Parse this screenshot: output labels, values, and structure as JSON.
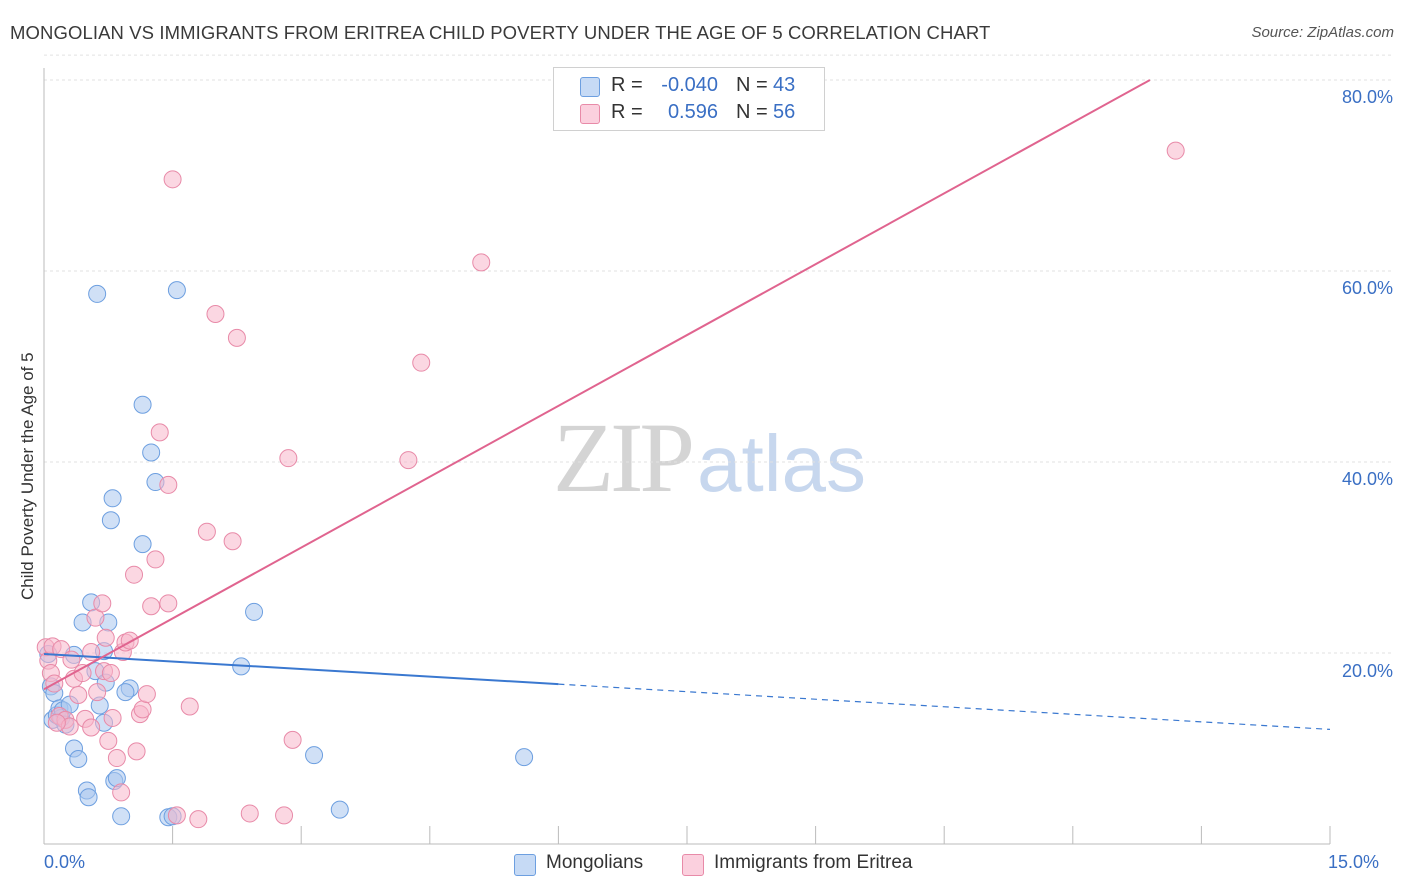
{
  "title": "MONGOLIAN VS IMMIGRANTS FROM ERITREA CHILD POVERTY UNDER THE AGE OF 5 CORRELATION CHART",
  "source": "Source: ZipAtlas.com",
  "watermark": {
    "zip": "ZIP",
    "atlas": "atlas"
  },
  "legend": {
    "rows": [
      {
        "r_label": "R =",
        "r_value": "-0.040",
        "n_label": "N =",
        "n_value": "43",
        "color": "#a9c6ef"
      },
      {
        "r_label": "R =",
        "r_value": "0.596",
        "n_label": "N =",
        "n_value": "56",
        "color": "#f7b6cb"
      }
    ]
  },
  "bottom_legend": [
    {
      "label": "Mongolians",
      "color": "#a9c6ef"
    },
    {
      "label": "Immigrants from Eritrea",
      "color": "#f7b6cb"
    }
  ],
  "chart_data": {
    "type": "scatter",
    "title": "MONGOLIAN VS IMMIGRANTS FROM ERITREA CHILD POVERTY UNDER THE AGE OF 5 CORRELATION CHART",
    "xlabel": "",
    "ylabel": "Child Poverty Under the Age of 5",
    "xlim": [
      0,
      15
    ],
    "ylim": [
      0,
      80
    ],
    "x_tick_labels": {
      "min": "0.0%",
      "max": "15.0%"
    },
    "y_ticks": [
      20,
      40,
      60,
      80
    ],
    "y_tick_labels": [
      "20.0%",
      "40.0%",
      "60.0%",
      "80.0%"
    ],
    "grid": true,
    "series": [
      {
        "name": "Mongolians",
        "color": "#6d9fe0",
        "fill": "#a9c6ef",
        "points": [
          [
            0.05,
            19.9
          ],
          [
            0.08,
            16.5
          ],
          [
            0.1,
            13.0
          ],
          [
            0.12,
            15.8
          ],
          [
            0.15,
            13.5
          ],
          [
            0.18,
            14.2
          ],
          [
            0.2,
            13.2
          ],
          [
            0.22,
            14.0
          ],
          [
            0.25,
            12.5
          ],
          [
            0.3,
            14.6
          ],
          [
            0.35,
            19.8
          ],
          [
            0.35,
            10.0
          ],
          [
            0.4,
            8.9
          ],
          [
            0.45,
            23.2
          ],
          [
            0.5,
            5.6
          ],
          [
            0.52,
            4.9
          ],
          [
            0.55,
            25.3
          ],
          [
            0.6,
            18.1
          ],
          [
            0.62,
            57.6
          ],
          [
            0.65,
            14.5
          ],
          [
            0.7,
            12.7
          ],
          [
            0.7,
            20.2
          ],
          [
            0.72,
            16.9
          ],
          [
            0.75,
            23.2
          ],
          [
            0.78,
            33.9
          ],
          [
            0.8,
            36.2
          ],
          [
            0.82,
            6.6
          ],
          [
            0.85,
            6.9
          ],
          [
            0.9,
            2.9
          ],
          [
            1.0,
            16.3
          ],
          [
            1.15,
            31.4
          ],
          [
            1.15,
            46.0
          ],
          [
            1.25,
            41.0
          ],
          [
            1.3,
            37.9
          ],
          [
            1.45,
            2.8
          ],
          [
            1.55,
            58.0
          ],
          [
            1.5,
            2.9
          ],
          [
            2.3,
            18.6
          ],
          [
            2.45,
            24.3
          ],
          [
            3.15,
            9.3
          ],
          [
            3.45,
            3.6
          ],
          [
            5.6,
            9.1
          ],
          [
            0.95,
            15.9
          ]
        ],
        "trend": {
          "x0": 0,
          "y0": 19.9,
          "x_solid_end": 6.0,
          "x1": 15.0,
          "y1": 12.0
        }
      },
      {
        "name": "Immigrants from Eritrea",
        "color": "#e88aa8",
        "fill": "#f7b6cb",
        "points": [
          [
            0.02,
            20.6
          ],
          [
            0.05,
            19.2
          ],
          [
            0.08,
            17.9
          ],
          [
            0.1,
            20.7
          ],
          [
            0.12,
            16.8
          ],
          [
            0.18,
            13.4
          ],
          [
            0.2,
            20.4
          ],
          [
            0.25,
            13.0
          ],
          [
            0.3,
            12.3
          ],
          [
            0.35,
            17.3
          ],
          [
            0.4,
            15.6
          ],
          [
            0.45,
            17.9
          ],
          [
            0.48,
            13.1
          ],
          [
            0.55,
            20.1
          ],
          [
            0.6,
            23.7
          ],
          [
            0.62,
            15.9
          ],
          [
            0.68,
            25.2
          ],
          [
            0.7,
            18.1
          ],
          [
            0.75,
            10.8
          ],
          [
            0.78,
            17.9
          ],
          [
            0.8,
            13.2
          ],
          [
            0.85,
            9.0
          ],
          [
            0.9,
            5.4
          ],
          [
            0.92,
            20.1
          ],
          [
            0.95,
            21.1
          ],
          [
            1.0,
            21.3
          ],
          [
            1.05,
            28.2
          ],
          [
            1.08,
            9.7
          ],
          [
            1.12,
            13.6
          ],
          [
            1.15,
            14.1
          ],
          [
            1.2,
            15.7
          ],
          [
            1.25,
            24.9
          ],
          [
            1.3,
            29.8
          ],
          [
            1.35,
            43.1
          ],
          [
            1.45,
            37.6
          ],
          [
            1.45,
            25.2
          ],
          [
            1.5,
            69.6
          ],
          [
            1.55,
            3.0
          ],
          [
            1.7,
            14.4
          ],
          [
            1.8,
            2.6
          ],
          [
            1.9,
            32.7
          ],
          [
            2.0,
            55.5
          ],
          [
            2.2,
            31.7
          ],
          [
            2.25,
            53.0
          ],
          [
            2.4,
            3.2
          ],
          [
            2.8,
            3.0
          ],
          [
            2.85,
            40.4
          ],
          [
            2.9,
            10.9
          ],
          [
            4.25,
            40.2
          ],
          [
            4.4,
            50.4
          ],
          [
            5.1,
            60.9
          ],
          [
            13.2,
            72.6
          ],
          [
            0.15,
            12.7
          ],
          [
            0.55,
            12.2
          ],
          [
            0.32,
            19.3
          ],
          [
            0.72,
            21.6
          ]
        ],
        "trend": {
          "x0": 0,
          "y0": 16.2,
          "x1": 12.9,
          "y1": 80.0
        }
      }
    ]
  }
}
